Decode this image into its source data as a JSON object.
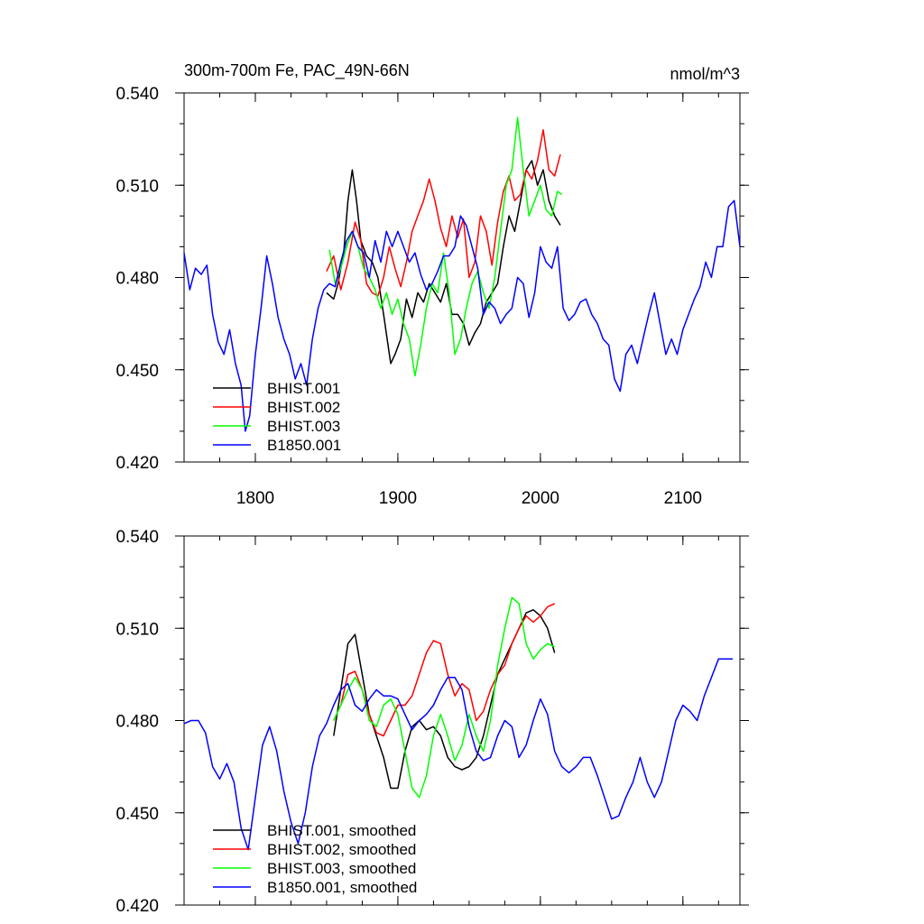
{
  "colors": {
    "BHIST.001": "#000000",
    "BHIST.002": "#ff0000",
    "BHIST.003": "#00ff00",
    "B1850.001": "#0000ff"
  },
  "chart_data": [
    {
      "type": "line",
      "title": "300m-700m Fe, PAC_49N-66N",
      "units": "nmol/m^3",
      "xlim": [
        1750,
        2140
      ],
      "ylim": [
        0.42,
        0.54
      ],
      "xticks": [
        1800,
        1900,
        2000,
        2100
      ],
      "yticks": [
        0.42,
        0.45,
        0.48,
        0.51,
        0.54
      ],
      "ytick_labels": [
        "0.420",
        "0.450",
        "0.480",
        "0.510",
        "0.540"
      ],
      "xtick_labels": [
        "1800",
        "1900",
        "2000",
        "2100"
      ],
      "legend_position": "bottom-left",
      "series": [
        {
          "name": "BHIST.001",
          "color": "#000000",
          "x": [
            1850,
            1855,
            1858,
            1862,
            1865,
            1868,
            1871,
            1874,
            1878,
            1882,
            1886,
            1890,
            1895,
            1898,
            1902,
            1906,
            1910,
            1914,
            1918,
            1922,
            1926,
            1930,
            1934,
            1938,
            1942,
            1946,
            1950,
            1954,
            1958,
            1962,
            1966,
            1970,
            1974,
            1978,
            1982,
            1986,
            1990,
            1994,
            1998,
            2002,
            2006,
            2010,
            2014
          ],
          "y": [
            0.475,
            0.473,
            0.478,
            0.488,
            0.505,
            0.515,
            0.505,
            0.492,
            0.487,
            0.485,
            0.48,
            0.468,
            0.452,
            0.455,
            0.46,
            0.473,
            0.467,
            0.475,
            0.472,
            0.478,
            0.475,
            0.472,
            0.478,
            0.468,
            0.468,
            0.465,
            0.458,
            0.462,
            0.465,
            0.472,
            0.475,
            0.478,
            0.49,
            0.5,
            0.495,
            0.505,
            0.515,
            0.518,
            0.51,
            0.515,
            0.505,
            0.5,
            0.497
          ]
        },
        {
          "name": "BHIST.002",
          "color": "#ff0000",
          "x": [
            1850,
            1855,
            1860,
            1865,
            1870,
            1874,
            1878,
            1882,
            1886,
            1890,
            1894,
            1898,
            1902,
            1906,
            1910,
            1914,
            1918,
            1922,
            1926,
            1930,
            1934,
            1938,
            1942,
            1946,
            1950,
            1954,
            1958,
            1962,
            1966,
            1970,
            1974,
            1978,
            1982,
            1986,
            1990,
            1994,
            1998,
            2002,
            2006,
            2010,
            2014
          ],
          "y": [
            0.482,
            0.487,
            0.476,
            0.485,
            0.498,
            0.492,
            0.478,
            0.475,
            0.474,
            0.48,
            0.49,
            0.483,
            0.477,
            0.485,
            0.495,
            0.5,
            0.505,
            0.512,
            0.505,
            0.496,
            0.49,
            0.5,
            0.493,
            0.499,
            0.48,
            0.485,
            0.5,
            0.495,
            0.484,
            0.498,
            0.508,
            0.513,
            0.505,
            0.507,
            0.515,
            0.512,
            0.518,
            0.528,
            0.515,
            0.513,
            0.52
          ]
        },
        {
          "name": "BHIST.003",
          "color": "#00ff00",
          "x": [
            1852,
            1856,
            1860,
            1864,
            1868,
            1872,
            1876,
            1880,
            1884,
            1888,
            1892,
            1896,
            1900,
            1904,
            1908,
            1912,
            1916,
            1920,
            1924,
            1928,
            1932,
            1936,
            1940,
            1944,
            1948,
            1952,
            1956,
            1960,
            1964,
            1968,
            1972,
            1976,
            1980,
            1984,
            1988,
            1992,
            1996,
            2000,
            2004,
            2008,
            2012,
            2015
          ],
          "y": [
            0.489,
            0.478,
            0.483,
            0.49,
            0.495,
            0.49,
            0.483,
            0.48,
            0.476,
            0.47,
            0.475,
            0.468,
            0.473,
            0.465,
            0.46,
            0.448,
            0.458,
            0.47,
            0.478,
            0.475,
            0.488,
            0.475,
            0.455,
            0.46,
            0.47,
            0.478,
            0.482,
            0.475,
            0.47,
            0.48,
            0.495,
            0.51,
            0.515,
            0.532,
            0.515,
            0.5,
            0.505,
            0.51,
            0.502,
            0.5,
            0.508,
            0.507
          ]
        },
        {
          "name": "B1850.001",
          "color": "#0000ff",
          "x": [
            1750,
            1754,
            1758,
            1762,
            1766,
            1770,
            1774,
            1778,
            1782,
            1786,
            1790,
            1793,
            1796,
            1800,
            1804,
            1808,
            1812,
            1816,
            1820,
            1824,
            1828,
            1832,
            1836,
            1840,
            1844,
            1848,
            1852,
            1856,
            1860,
            1864,
            1868,
            1872,
            1876,
            1880,
            1884,
            1888,
            1892,
            1896,
            1900,
            1904,
            1908,
            1912,
            1916,
            1920,
            1924,
            1928,
            1932,
            1936,
            1940,
            1944,
            1948,
            1952,
            1956,
            1960,
            1964,
            1968,
            1972,
            1976,
            1980,
            1984,
            1988,
            1992,
            1996,
            2000,
            2004,
            2008,
            2012,
            2016,
            2020,
            2024,
            2028,
            2032,
            2036,
            2040,
            2044,
            2048,
            2052,
            2056,
            2060,
            2064,
            2068,
            2072,
            2076,
            2080,
            2084,
            2088,
            2092,
            2096,
            2100,
            2104,
            2108,
            2112,
            2116,
            2120,
            2124,
            2128,
            2132,
            2136,
            2140
          ],
          "y": [
            0.488,
            0.476,
            0.483,
            0.481,
            0.484,
            0.468,
            0.459,
            0.455,
            0.463,
            0.452,
            0.445,
            0.43,
            0.435,
            0.455,
            0.47,
            0.487,
            0.478,
            0.467,
            0.46,
            0.455,
            0.447,
            0.452,
            0.445,
            0.46,
            0.47,
            0.476,
            0.478,
            0.477,
            0.485,
            0.492,
            0.495,
            0.49,
            0.488,
            0.48,
            0.492,
            0.485,
            0.495,
            0.49,
            0.495,
            0.49,
            0.485,
            0.488,
            0.481,
            0.476,
            0.478,
            0.482,
            0.487,
            0.487,
            0.49,
            0.5,
            0.497,
            0.49,
            0.483,
            0.468,
            0.472,
            0.47,
            0.465,
            0.468,
            0.47,
            0.48,
            0.478,
            0.467,
            0.475,
            0.49,
            0.485,
            0.483,
            0.49,
            0.47,
            0.466,
            0.468,
            0.472,
            0.473,
            0.468,
            0.465,
            0.46,
            0.458,
            0.447,
            0.443,
            0.455,
            0.458,
            0.452,
            0.46,
            0.468,
            0.475,
            0.465,
            0.455,
            0.46,
            0.455,
            0.463,
            0.468,
            0.473,
            0.477,
            0.485,
            0.48,
            0.49,
            0.49,
            0.503,
            0.505,
            0.49
          ]
        }
      ]
    },
    {
      "type": "line",
      "xlim": [
        1750,
        2140
      ],
      "ylim": [
        0.42,
        0.54
      ],
      "xticks": [
        1800,
        1900,
        2000,
        2100
      ],
      "yticks": [
        0.42,
        0.45,
        0.48,
        0.51,
        0.54
      ],
      "ytick_labels": [
        "0.420",
        "0.450",
        "0.480",
        "0.510",
        "0.540"
      ],
      "legend_position": "bottom-left",
      "series": [
        {
          "name": "BHIST.001, smoothed",
          "color": "#000000",
          "x": [
            1855,
            1860,
            1865,
            1870,
            1875,
            1880,
            1885,
            1890,
            1895,
            1900,
            1905,
            1910,
            1915,
            1920,
            1925,
            1930,
            1935,
            1940,
            1945,
            1950,
            1955,
            1960,
            1965,
            1970,
            1975,
            1980,
            1985,
            1990,
            1995,
            2000,
            2005,
            2010
          ],
          "y": [
            0.475,
            0.49,
            0.505,
            0.508,
            0.495,
            0.482,
            0.475,
            0.468,
            0.458,
            0.458,
            0.47,
            0.478,
            0.48,
            0.477,
            0.478,
            0.475,
            0.468,
            0.465,
            0.464,
            0.465,
            0.468,
            0.475,
            0.485,
            0.495,
            0.5,
            0.505,
            0.51,
            0.515,
            0.516,
            0.514,
            0.51,
            0.502
          ]
        },
        {
          "name": "BHIST.002, smoothed",
          "color": "#ff0000",
          "x": [
            1855,
            1860,
            1865,
            1870,
            1875,
            1880,
            1885,
            1890,
            1895,
            1900,
            1905,
            1910,
            1915,
            1920,
            1925,
            1930,
            1935,
            1940,
            1945,
            1950,
            1955,
            1960,
            1965,
            1970,
            1975,
            1980,
            1985,
            1990,
            1995,
            2000,
            2005,
            2010
          ],
          "y": [
            0.48,
            0.485,
            0.495,
            0.496,
            0.49,
            0.482,
            0.476,
            0.475,
            0.48,
            0.485,
            0.485,
            0.488,
            0.495,
            0.502,
            0.506,
            0.505,
            0.495,
            0.488,
            0.492,
            0.49,
            0.48,
            0.483,
            0.49,
            0.495,
            0.498,
            0.505,
            0.51,
            0.514,
            0.512,
            0.514,
            0.517,
            0.518
          ]
        },
        {
          "name": "BHIST.003, smoothed",
          "color": "#00ff00",
          "x": [
            1855,
            1860,
            1865,
            1870,
            1875,
            1880,
            1885,
            1890,
            1895,
            1900,
            1905,
            1910,
            1915,
            1920,
            1925,
            1930,
            1935,
            1940,
            1945,
            1950,
            1955,
            1960,
            1965,
            1970,
            1975,
            1980,
            1985,
            1990,
            1995,
            2000,
            2005,
            2010
          ],
          "y": [
            0.48,
            0.485,
            0.49,
            0.494,
            0.49,
            0.48,
            0.478,
            0.485,
            0.487,
            0.482,
            0.47,
            0.458,
            0.455,
            0.462,
            0.475,
            0.482,
            0.475,
            0.467,
            0.472,
            0.482,
            0.475,
            0.47,
            0.48,
            0.498,
            0.51,
            0.52,
            0.518,
            0.505,
            0.5,
            0.503,
            0.505,
            0.504
          ]
        },
        {
          "name": "B1850.001, smoothed",
          "color": "#0000ff",
          "x": [
            1750,
            1755,
            1760,
            1765,
            1770,
            1775,
            1780,
            1785,
            1790,
            1795,
            1800,
            1805,
            1810,
            1815,
            1820,
            1825,
            1830,
            1835,
            1840,
            1845,
            1850,
            1855,
            1860,
            1865,
            1870,
            1875,
            1880,
            1885,
            1890,
            1895,
            1900,
            1905,
            1910,
            1915,
            1920,
            1925,
            1930,
            1935,
            1940,
            1945,
            1950,
            1955,
            1960,
            1965,
            1970,
            1975,
            1980,
            1985,
            1990,
            1995,
            2000,
            2005,
            2010,
            2015,
            2020,
            2025,
            2030,
            2035,
            2040,
            2045,
            2050,
            2055,
            2060,
            2065,
            2070,
            2075,
            2080,
            2085,
            2090,
            2095,
            2100,
            2105,
            2110,
            2115,
            2120,
            2125,
            2130,
            2135
          ],
          "y": [
            0.479,
            0.48,
            0.48,
            0.476,
            0.465,
            0.461,
            0.466,
            0.46,
            0.445,
            0.438,
            0.455,
            0.472,
            0.478,
            0.47,
            0.457,
            0.447,
            0.44,
            0.45,
            0.465,
            0.475,
            0.479,
            0.485,
            0.49,
            0.492,
            0.485,
            0.483,
            0.487,
            0.49,
            0.488,
            0.488,
            0.487,
            0.482,
            0.477,
            0.48,
            0.482,
            0.485,
            0.49,
            0.494,
            0.494,
            0.49,
            0.478,
            0.47,
            0.467,
            0.468,
            0.475,
            0.48,
            0.478,
            0.468,
            0.472,
            0.48,
            0.487,
            0.482,
            0.47,
            0.465,
            0.463,
            0.465,
            0.468,
            0.468,
            0.462,
            0.455,
            0.448,
            0.449,
            0.455,
            0.46,
            0.468,
            0.46,
            0.455,
            0.46,
            0.47,
            0.48,
            0.485,
            0.483,
            0.48,
            0.488,
            0.494,
            0.5,
            0.5,
            0.5
          ]
        }
      ]
    }
  ]
}
